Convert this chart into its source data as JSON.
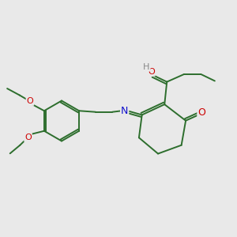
{
  "background_color": "#e9e9e9",
  "line_color": "#2d6e2d",
  "bond_lw": 1.4,
  "atom_colors": {
    "O": "#cc0000",
    "N": "#1010cc",
    "H": "#888888"
  },
  "font_size": 8.5
}
